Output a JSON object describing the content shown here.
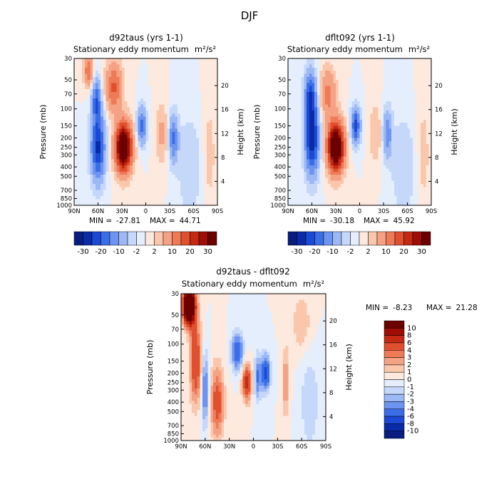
{
  "figure_title": "DJF",
  "chart_data": [
    {
      "type": "heatmap",
      "id": "panel1",
      "title": "d92taus (yrs 1-1)",
      "subtitle": "Stationary eddy momentum",
      "units": "m²/s²",
      "ylabel": "Pressure (mb)",
      "ylabel_right": "Height (km)",
      "x_ticks": [
        "90N",
        "60N",
        "30N",
        "0",
        "30S",
        "60S",
        "90S"
      ],
      "x_tick_lats": [
        90,
        60,
        30,
        0,
        -30,
        -60,
        -90
      ],
      "y_ticks": [
        "30",
        "50",
        "70",
        "100",
        "150",
        "200",
        "250",
        "300",
        "400",
        "500",
        "700",
        "850",
        "1000"
      ],
      "y_tick_values": [
        30,
        50,
        70,
        100,
        150,
        200,
        250,
        300,
        400,
        500,
        700,
        850,
        1000
      ],
      "right_ticks": [
        "20",
        "16",
        "12",
        "8",
        "4"
      ],
      "right_tick_values": [
        20,
        16,
        12,
        8,
        4
      ],
      "min_label": "MIN =",
      "min": "-27.81",
      "max_label": "MAX =",
      "max": "44.71",
      "colorbar_ticks": [
        "-30",
        "-20",
        "-10",
        "-2",
        "2",
        "10",
        "20",
        "30"
      ],
      "features": [
        {
          "lat": 60,
          "p": 250,
          "amp": -27,
          "wlat": 6,
          "wlogp": 0.55
        },
        {
          "lat": 62,
          "p": 80,
          "amp": -18,
          "wlat": 4,
          "wlogp": 0.35
        },
        {
          "lat": 72,
          "p": 40,
          "amp": 14,
          "wlat": 4,
          "wlogp": 0.25
        },
        {
          "lat": 28,
          "p": 250,
          "amp": 44,
          "wlat": 7,
          "wlogp": 0.4
        },
        {
          "lat": 40,
          "p": 60,
          "amp": 16,
          "wlat": 7,
          "wlogp": 0.4
        },
        {
          "lat": 5,
          "p": 150,
          "amp": -18,
          "wlat": 4,
          "wlogp": 0.3
        },
        {
          "lat": -20,
          "p": 180,
          "amp": 6,
          "wlat": 5,
          "wlogp": 0.5
        },
        {
          "lat": -35,
          "p": 200,
          "amp": -16,
          "wlat": 4,
          "wlogp": 0.4
        },
        {
          "lat": -55,
          "p": 400,
          "amp": -5,
          "wlat": 10,
          "wlogp": 0.8
        },
        {
          "lat": -80,
          "p": 300,
          "amp": 3,
          "wlat": 6,
          "wlogp": 1.0
        }
      ]
    },
    {
      "type": "heatmap",
      "id": "panel2",
      "title": "dflt092 (yrs 1-1)",
      "subtitle": "Stationary eddy momentum",
      "units": "m²/s²",
      "ylabel": "Pressure (mb)",
      "ylabel_right": "Height (km)",
      "x_ticks": [
        "90N",
        "60N",
        "30N",
        "0",
        "30S",
        "60S",
        "90S"
      ],
      "x_tick_lats": [
        90,
        60,
        30,
        0,
        -30,
        -60,
        -90
      ],
      "y_ticks": [
        "30",
        "50",
        "70",
        "100",
        "150",
        "200",
        "250",
        "300",
        "400",
        "500",
        "700",
        "850",
        "1000"
      ],
      "y_tick_values": [
        30,
        50,
        70,
        100,
        150,
        200,
        250,
        300,
        400,
        500,
        700,
        850,
        1000
      ],
      "right_ticks": [
        "20",
        "16",
        "12",
        "8",
        "4"
      ],
      "right_tick_values": [
        20,
        16,
        12,
        8,
        4
      ],
      "min_label": "MIN =",
      "min": "-30.18",
      "max_label": "MAX =",
      "max": "45.92",
      "colorbar_ticks": [
        "-30",
        "-20",
        "-10",
        "-2",
        "2",
        "10",
        "20",
        "30"
      ],
      "features": [
        {
          "lat": 60,
          "p": 200,
          "amp": -30,
          "wlat": 6,
          "wlogp": 0.6
        },
        {
          "lat": 62,
          "p": 70,
          "amp": -20,
          "wlat": 5,
          "wlogp": 0.4
        },
        {
          "lat": 30,
          "p": 250,
          "amp": 45,
          "wlat": 7,
          "wlogp": 0.4
        },
        {
          "lat": 40,
          "p": 70,
          "amp": 12,
          "wlat": 7,
          "wlogp": 0.4
        },
        {
          "lat": 5,
          "p": 150,
          "amp": -22,
          "wlat": 4,
          "wlogp": 0.3
        },
        {
          "lat": -20,
          "p": 180,
          "amp": 5,
          "wlat": 5,
          "wlogp": 0.5
        },
        {
          "lat": -35,
          "p": 180,
          "amp": -14,
          "wlat": 4,
          "wlogp": 0.4
        },
        {
          "lat": -55,
          "p": 400,
          "amp": -5,
          "wlat": 10,
          "wlogp": 0.8
        },
        {
          "lat": -80,
          "p": 300,
          "amp": 3,
          "wlat": 6,
          "wlogp": 1.0
        }
      ]
    },
    {
      "type": "heatmap",
      "id": "panel3",
      "title": "d92taus - dflt092",
      "subtitle": "Stationary eddy momentum",
      "units": "m²/s²",
      "ylabel": "Pressure (mb)",
      "ylabel_right": "Height (km)",
      "x_ticks": [
        "90N",
        "60N",
        "30N",
        "0",
        "30S",
        "60S",
        "90S"
      ],
      "x_tick_lats": [
        90,
        60,
        30,
        0,
        -30,
        -60,
        -90
      ],
      "y_ticks": [
        "30",
        "50",
        "70",
        "100",
        "150",
        "200",
        "250",
        "300",
        "400",
        "500",
        "700",
        "850",
        "1000"
      ],
      "y_tick_values": [
        30,
        50,
        70,
        100,
        150,
        200,
        250,
        300,
        400,
        500,
        700,
        850,
        1000
      ],
      "right_ticks": [
        "20",
        "16",
        "12",
        "8",
        "4"
      ],
      "right_tick_values": [
        20,
        16,
        12,
        8,
        4
      ],
      "min_label": "MIN =",
      "min": "-8.23",
      "max_label": "MAX =",
      "max": "21.28",
      "colorbar_ticks": [
        "10",
        "8",
        "6",
        "4",
        "3",
        "2",
        "1",
        "0",
        "-1",
        "-2",
        "-3",
        "-4",
        "-6",
        "-8",
        "-10"
      ],
      "features": [
        {
          "lat": 80,
          "p": 40,
          "amp": 20,
          "wlat": 5,
          "wlogp": 0.3
        },
        {
          "lat": 72,
          "p": 150,
          "amp": 6,
          "wlat": 5,
          "wlogp": 0.7
        },
        {
          "lat": 60,
          "p": 300,
          "amp": -5,
          "wlat": 3,
          "wlogp": 0.6
        },
        {
          "lat": 45,
          "p": 400,
          "amp": 5,
          "wlat": 6,
          "wlogp": 0.6
        },
        {
          "lat": 20,
          "p": 120,
          "amp": -6,
          "wlat": 5,
          "wlogp": 0.3
        },
        {
          "lat": 8,
          "p": 250,
          "amp": 7,
          "wlat": 4,
          "wlogp": 0.3
        },
        {
          "lat": -5,
          "p": 220,
          "amp": -4,
          "wlat": 3,
          "wlogp": 0.4
        },
        {
          "lat": -15,
          "p": 200,
          "amp": -7,
          "wlat": 4,
          "wlogp": 0.3
        },
        {
          "lat": -40,
          "p": 250,
          "amp": 3,
          "wlat": 3,
          "wlogp": 0.6
        },
        {
          "lat": -70,
          "p": 400,
          "amp": -2,
          "wlat": 8,
          "wlogp": 0.8
        },
        {
          "lat": -60,
          "p": 60,
          "amp": 2,
          "wlat": 8,
          "wlogp": 0.5
        }
      ]
    }
  ],
  "colors": {
    "diverging": [
      "#081d7f",
      "#0a2ba8",
      "#1b49d6",
      "#3a6ee6",
      "#6c94f0",
      "#9cb8f5",
      "#c6d8fa",
      "#e4eefc",
      "#fde9dd",
      "#fac7ad",
      "#f4a283",
      "#ee7a58",
      "#e0502f",
      "#c42a13",
      "#9e0e04",
      "#6b0000"
    ]
  }
}
